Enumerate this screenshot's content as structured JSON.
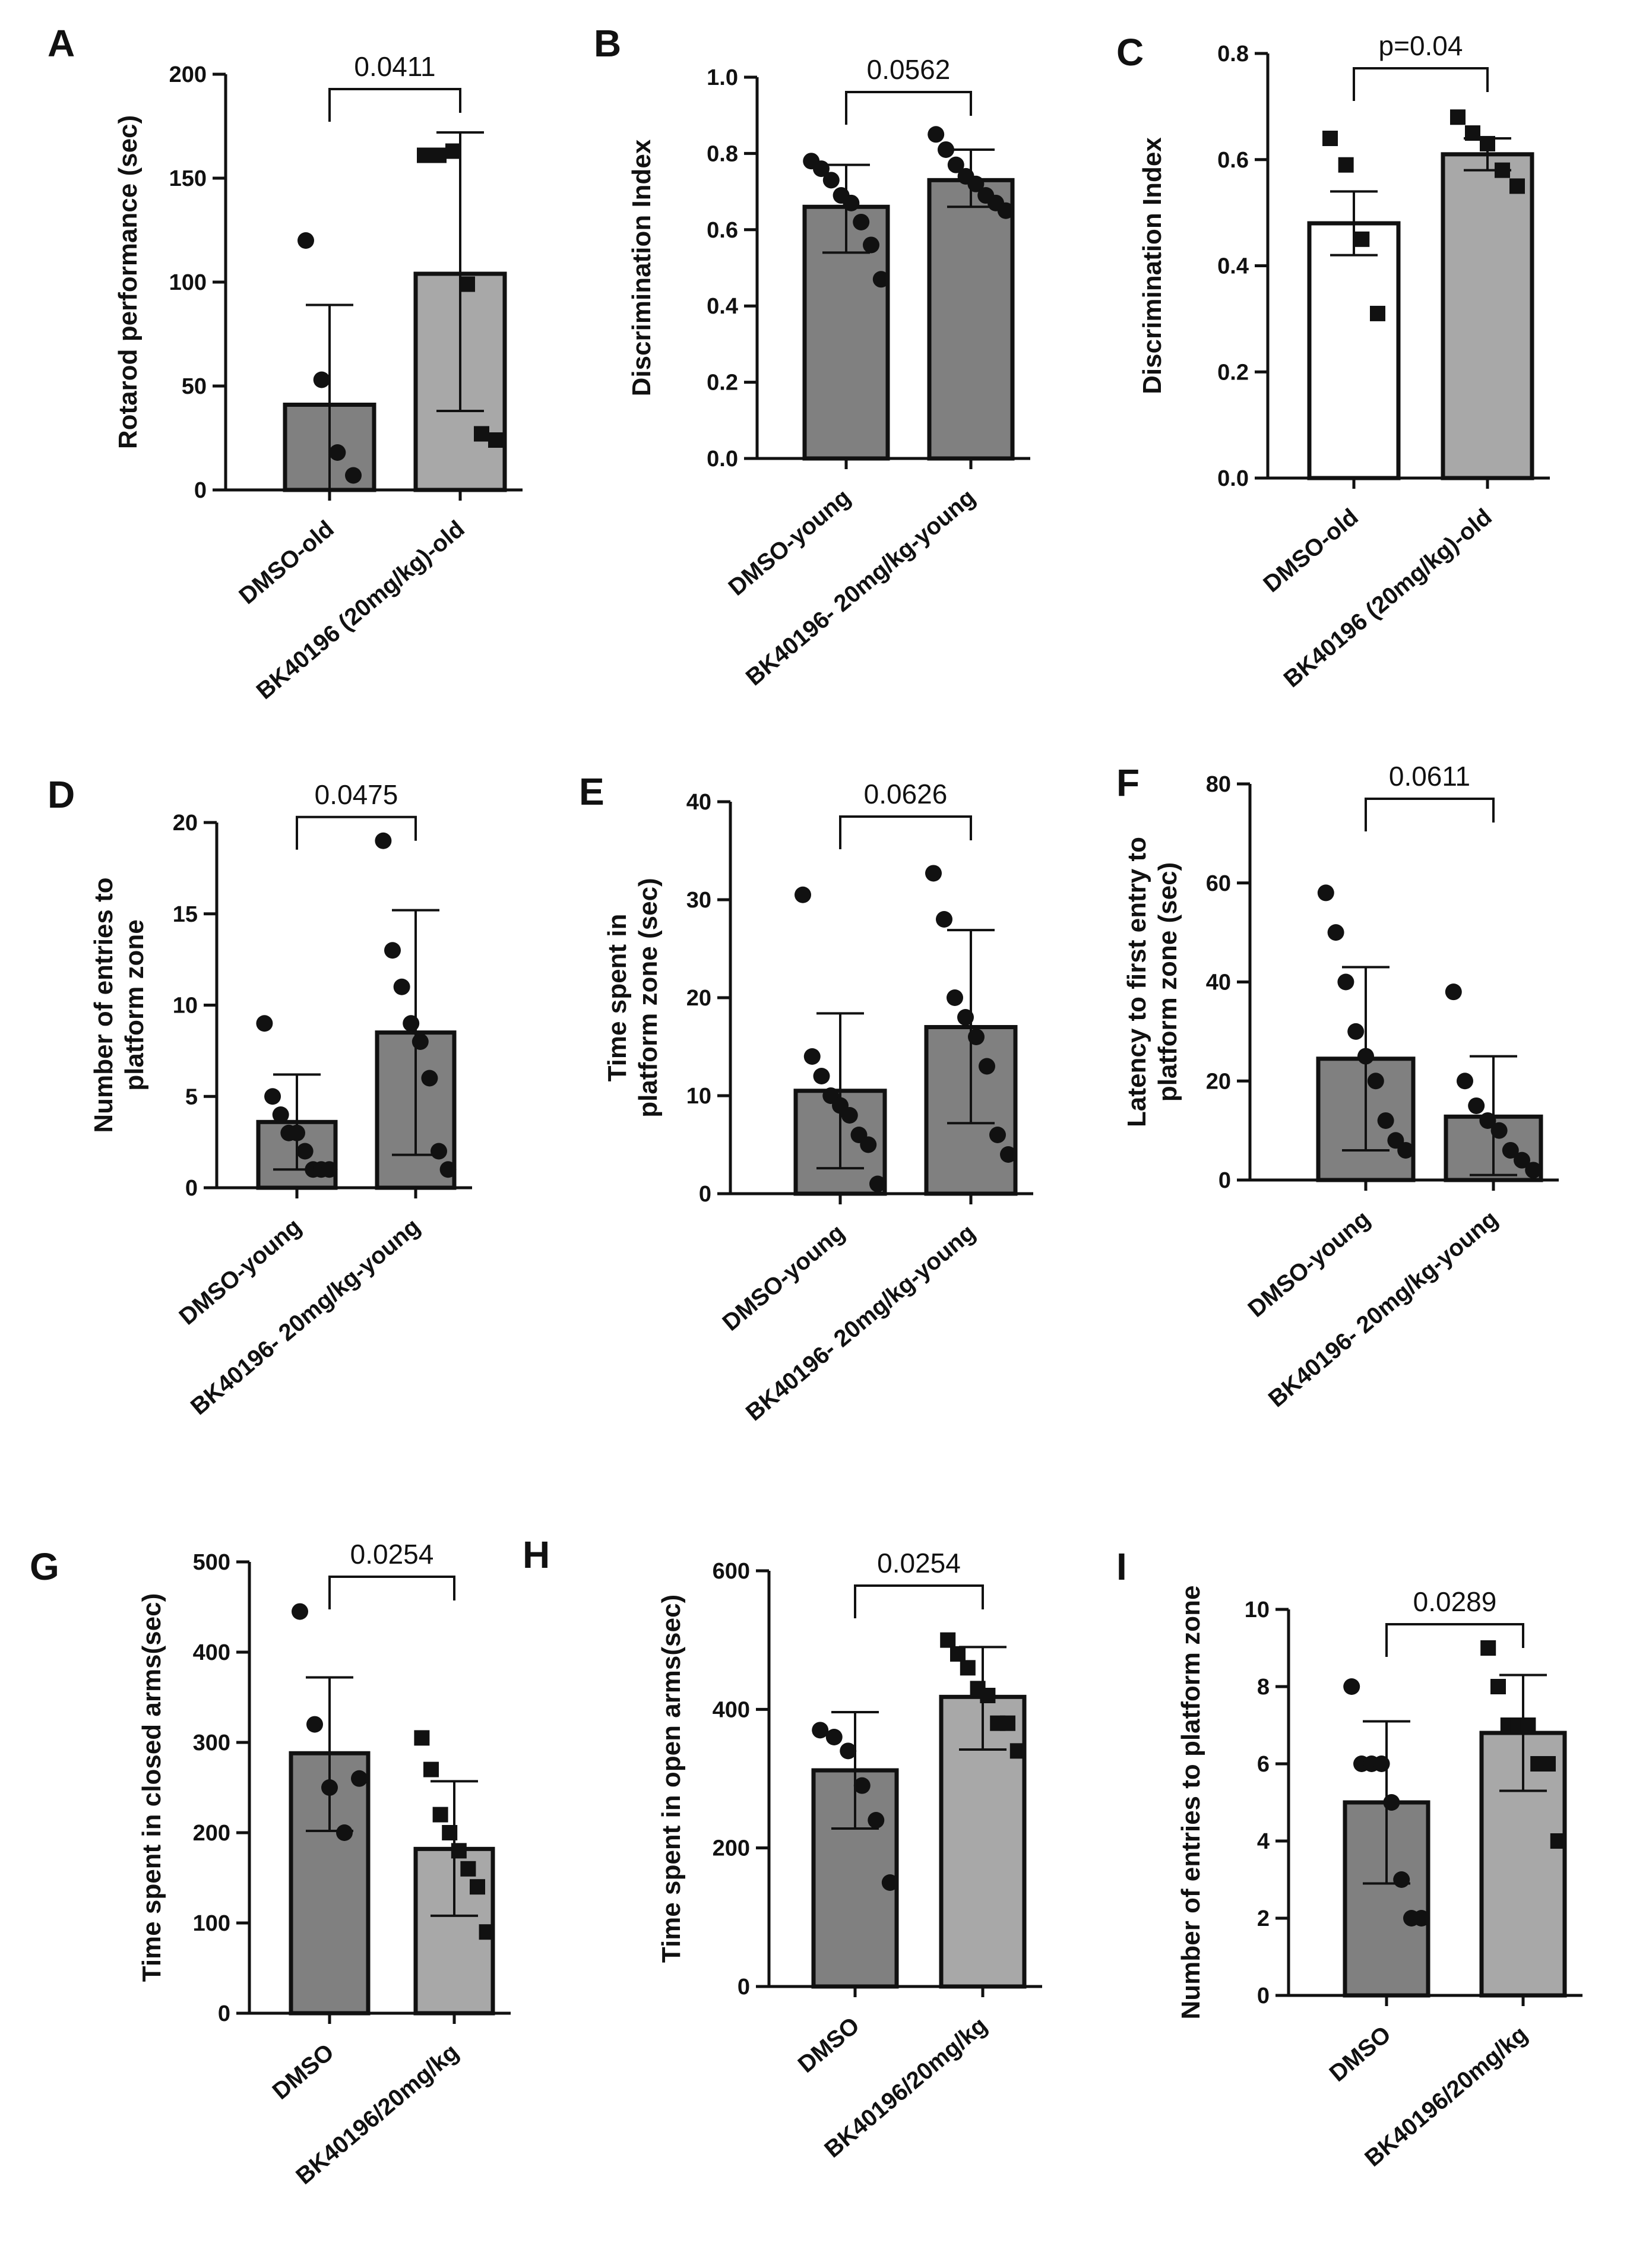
{
  "figure": {
    "description": "Nine bar charts (A-I) comparing DMSO vs BK40196 treatment groups"
  },
  "colors": {
    "dark_bar": "#808080",
    "light_bar": "#a8a8a8",
    "white_bar": "#ffffff",
    "stroke": "#111111",
    "dot": "#111111"
  },
  "chart_data": [
    {
      "id": "A",
      "type": "bar",
      "letter": "A",
      "ylabel": [
        "Rotarod performance (sec)"
      ],
      "categories": [
        "DMSO-old",
        "BK40196 (20mg/kg)-old"
      ],
      "values": [
        41,
        104
      ],
      "sd_upper": [
        89,
        172
      ],
      "sd_lower": [
        0,
        38
      ],
      "points": [
        [
          120,
          53,
          18,
          7
        ],
        [
          161,
          161,
          163,
          99,
          27,
          24
        ]
      ],
      "markers": [
        "circle",
        "square"
      ],
      "bar_fill": [
        "dark_bar",
        "light_bar"
      ],
      "ylim": [
        0,
        200
      ],
      "yticks": [
        0,
        50,
        100,
        150,
        200
      ],
      "pvalue": "0.0411"
    },
    {
      "id": "B",
      "type": "bar",
      "letter": "B",
      "ylabel": [
        "Discrimination Index"
      ],
      "categories": [
        "DMSO-young",
        "BK40196- 20mg/kg-young"
      ],
      "values": [
        0.66,
        0.73
      ],
      "sd_upper": [
        0.77,
        0.81
      ],
      "sd_lower": [
        0.54,
        0.66
      ],
      "points": [
        [
          0.78,
          0.76,
          0.73,
          0.69,
          0.67,
          0.62,
          0.56,
          0.47
        ],
        [
          0.85,
          0.81,
          0.77,
          0.74,
          0.72,
          0.69,
          0.67,
          0.65
        ]
      ],
      "markers": [
        "circle",
        "circle"
      ],
      "bar_fill": [
        "dark_bar",
        "dark_bar"
      ],
      "ylim": [
        0,
        1.0
      ],
      "yticks": [
        "0.0",
        "0.2",
        "0.4",
        "0.6",
        "0.8",
        "1.0"
      ],
      "pvalue": "0.0562"
    },
    {
      "id": "C",
      "type": "bar",
      "letter": "C",
      "ylabel": [
        "Discrimination Index"
      ],
      "categories": [
        "DMSO-old",
        "BK40196 (20mg/kg)-old"
      ],
      "values": [
        0.48,
        0.61
      ],
      "sd_upper": [
        0.54,
        0.64
      ],
      "sd_lower": [
        0.42,
        0.58
      ],
      "points": [
        [
          0.64,
          0.59,
          0.45,
          0.31
        ],
        [
          0.68,
          0.65,
          0.63,
          0.58,
          0.55
        ]
      ],
      "markers": [
        "square",
        "square"
      ],
      "bar_fill": [
        "white_bar",
        "light_bar"
      ],
      "ylim": [
        0,
        0.8
      ],
      "yticks": [
        "0.0",
        "0.2",
        "0.4",
        "0.6",
        "0.8"
      ],
      "pvalue": "p=0.04"
    },
    {
      "id": "D",
      "type": "bar",
      "letter": "D",
      "ylabel": [
        "Number of entries to",
        "platform zone"
      ],
      "categories": [
        "DMSO-young",
        "BK40196- 20mg/kg-young"
      ],
      "values": [
        3.6,
        8.5
      ],
      "sd_upper": [
        6.2,
        15.2
      ],
      "sd_lower": [
        1.0,
        1.8
      ],
      "points": [
        [
          9,
          5,
          4,
          3,
          3,
          2,
          1,
          1,
          1
        ],
        [
          19,
          13,
          11,
          9,
          8,
          6,
          2,
          1
        ]
      ],
      "markers": [
        "circle",
        "circle"
      ],
      "bar_fill": [
        "dark_bar",
        "dark_bar"
      ],
      "ylim": [
        0,
        20
      ],
      "yticks": [
        0,
        5,
        10,
        15,
        20
      ],
      "pvalue": "0.0475"
    },
    {
      "id": "E",
      "type": "bar",
      "letter": "E",
      "ylabel": [
        "Time spent in",
        "platform zone (sec)"
      ],
      "categories": [
        "DMSO-young",
        "BK40196- 20mg/kg-young"
      ],
      "values": [
        10.5,
        17.0
      ],
      "sd_upper": [
        18.4,
        26.9
      ],
      "sd_lower": [
        2.6,
        7.2
      ],
      "points": [
        [
          30.5,
          14,
          12,
          10,
          9,
          8,
          6,
          5,
          1
        ],
        [
          32.7,
          28,
          20,
          18,
          16,
          13,
          6,
          4
        ]
      ],
      "markers": [
        "circle",
        "circle"
      ],
      "bar_fill": [
        "dark_bar",
        "dark_bar"
      ],
      "ylim": [
        0,
        40
      ],
      "yticks": [
        0,
        10,
        20,
        30,
        40
      ],
      "pvalue": "0.0626"
    },
    {
      "id": "F",
      "type": "bar",
      "letter": "F",
      "ylabel": [
        "Latency to first entry to",
        "platform zone (sec)"
      ],
      "categories": [
        "DMSO-young",
        "BK40196- 20mg/kg-young"
      ],
      "values": [
        24.5,
        12.8
      ],
      "sd_upper": [
        43,
        25
      ],
      "sd_lower": [
        6,
        1
      ],
      "points": [
        [
          58,
          50,
          40,
          30,
          25,
          20,
          12,
          8,
          6
        ],
        [
          38,
          20,
          15,
          12,
          10,
          6,
          4,
          2
        ]
      ],
      "markers": [
        "circle",
        "circle"
      ],
      "bar_fill": [
        "dark_bar",
        "dark_bar"
      ],
      "ylim": [
        0,
        80
      ],
      "yticks": [
        0,
        20,
        40,
        60,
        80
      ],
      "pvalue": "0.0611"
    },
    {
      "id": "G",
      "type": "bar",
      "letter": "G",
      "ylabel": [
        "Time spent in closed arms(sec)"
      ],
      "categories": [
        "DMSO",
        "BK40196/20mg/kg"
      ],
      "values": [
        288,
        182
      ],
      "sd_upper": [
        372,
        257
      ],
      "sd_lower": [
        202,
        108
      ],
      "points": [
        [
          445,
          320,
          250,
          200,
          260
        ],
        [
          305,
          270,
          220,
          200,
          180,
          160,
          140,
          90
        ]
      ],
      "markers": [
        "circle",
        "square"
      ],
      "bar_fill": [
        "dark_bar",
        "light_bar"
      ],
      "ylim": [
        0,
        500
      ],
      "yticks": [
        0,
        100,
        200,
        300,
        400,
        500
      ],
      "pvalue": "0.0254"
    },
    {
      "id": "H",
      "type": "bar",
      "letter": "H",
      "ylabel": [
        "Time spent in open arms(sec)"
      ],
      "categories": [
        "DMSO",
        "BK40196/20mg/kg"
      ],
      "values": [
        312,
        418
      ],
      "sd_upper": [
        396,
        490
      ],
      "sd_lower": [
        228,
        342
      ],
      "points": [
        [
          370,
          360,
          340,
          290,
          240,
          150
        ],
        [
          500,
          480,
          460,
          430,
          420,
          380,
          380,
          340
        ]
      ],
      "markers": [
        "circle",
        "square"
      ],
      "bar_fill": [
        "dark_bar",
        "light_bar"
      ],
      "ylim": [
        0,
        600
      ],
      "yticks": [
        0,
        200,
        400,
        600
      ],
      "pvalue": "0.0254"
    },
    {
      "id": "I",
      "type": "bar",
      "letter": "I",
      "ylabel": [
        "Number of entries to platform zone"
      ],
      "categories": [
        "DMSO",
        "BK40196/20mg/kg"
      ],
      "values": [
        5.0,
        6.8
      ],
      "sd_upper": [
        7.1,
        8.3
      ],
      "sd_lower": [
        2.9,
        5.3
      ],
      "points": [
        [
          8,
          6,
          6,
          6,
          5,
          3,
          2,
          2
        ],
        [
          9,
          8,
          7,
          7,
          7,
          6,
          6,
          4
        ]
      ],
      "markers": [
        "circle",
        "square"
      ],
      "bar_fill": [
        "dark_bar",
        "light_bar"
      ],
      "ylim": [
        0,
        10
      ],
      "yticks": [
        0,
        2,
        4,
        6,
        8,
        10
      ],
      "pvalue": "0.0289"
    }
  ]
}
